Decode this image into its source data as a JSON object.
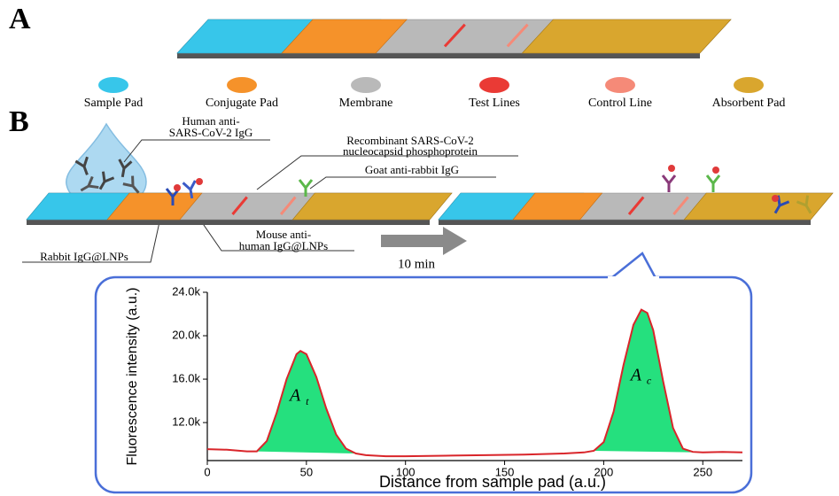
{
  "panel_a": {
    "label": "A"
  },
  "legend": [
    {
      "label": "Sample Pad",
      "color": "#37c6ea"
    },
    {
      "label": "Conjugate Pad",
      "color": "#f5922a"
    },
    {
      "label": "Membrane",
      "color": "#b9b9b9"
    },
    {
      "label": "Test Lines",
      "color": "#ea3a35"
    },
    {
      "label": "Control Line",
      "color": "#f58a78"
    },
    {
      "label": "Absorbent Pad",
      "color": "#d9a62e"
    }
  ],
  "panel_b": {
    "label": "B",
    "callouts": {
      "human_igg": [
        "Human anti-",
        "SARS-CoV-2 IgG"
      ],
      "recombinant": [
        "Recombinant SARS-CoV-2",
        "nucleocapsid phosphoprotein"
      ],
      "goat": "Goat anti-rabbit IgG",
      "mouse": [
        "Mouse anti-",
        "human IgG@LNPs"
      ],
      "rabbit": "Rabbit IgG@LNPs"
    },
    "time": "10 min"
  },
  "chart_data": {
    "type": "line",
    "x_label": "Distance from sample pad (a.u.)",
    "y_label": "Fluorescence intensity (a.u.)",
    "x": [
      0,
      10,
      20,
      25,
      30,
      35,
      40,
      45,
      47,
      50,
      55,
      60,
      65,
      70,
      75,
      80,
      90,
      100,
      120,
      140,
      160,
      180,
      190,
      195,
      200,
      205,
      210,
      215,
      219,
      222,
      225,
      230,
      235,
      240,
      245,
      250,
      260,
      270
    ],
    "series": [
      {
        "color": "#d9252a",
        "fill": "#25e07e",
        "values": [
          9550,
          9500,
          9350,
          9350,
          10300,
          12900,
          16000,
          18300,
          18600,
          18300,
          16200,
          13300,
          10900,
          9600,
          9150,
          9000,
          8900,
          8900,
          8950,
          9000,
          9050,
          9150,
          9250,
          9400,
          10200,
          13000,
          17300,
          21000,
          22400,
          22100,
          20500,
          15800,
          11500,
          9600,
          9300,
          9250,
          9300,
          9250
        ]
      }
    ],
    "annotations": [
      {
        "text": "A",
        "sub": "t"
      },
      {
        "text": "A",
        "sub": "c"
      }
    ],
    "xlim": [
      0,
      270
    ],
    "ylim": [
      8500,
      24000
    ],
    "xticks": [
      0,
      50,
      100,
      150,
      200,
      250
    ],
    "yticks": [
      {
        "value": 12000,
        "label": "12.0k"
      },
      {
        "value": 16000,
        "label": "16.0k"
      },
      {
        "value": 20000,
        "label": "20.0k"
      },
      {
        "value": 24000,
        "label": "24.0k"
      }
    ]
  }
}
